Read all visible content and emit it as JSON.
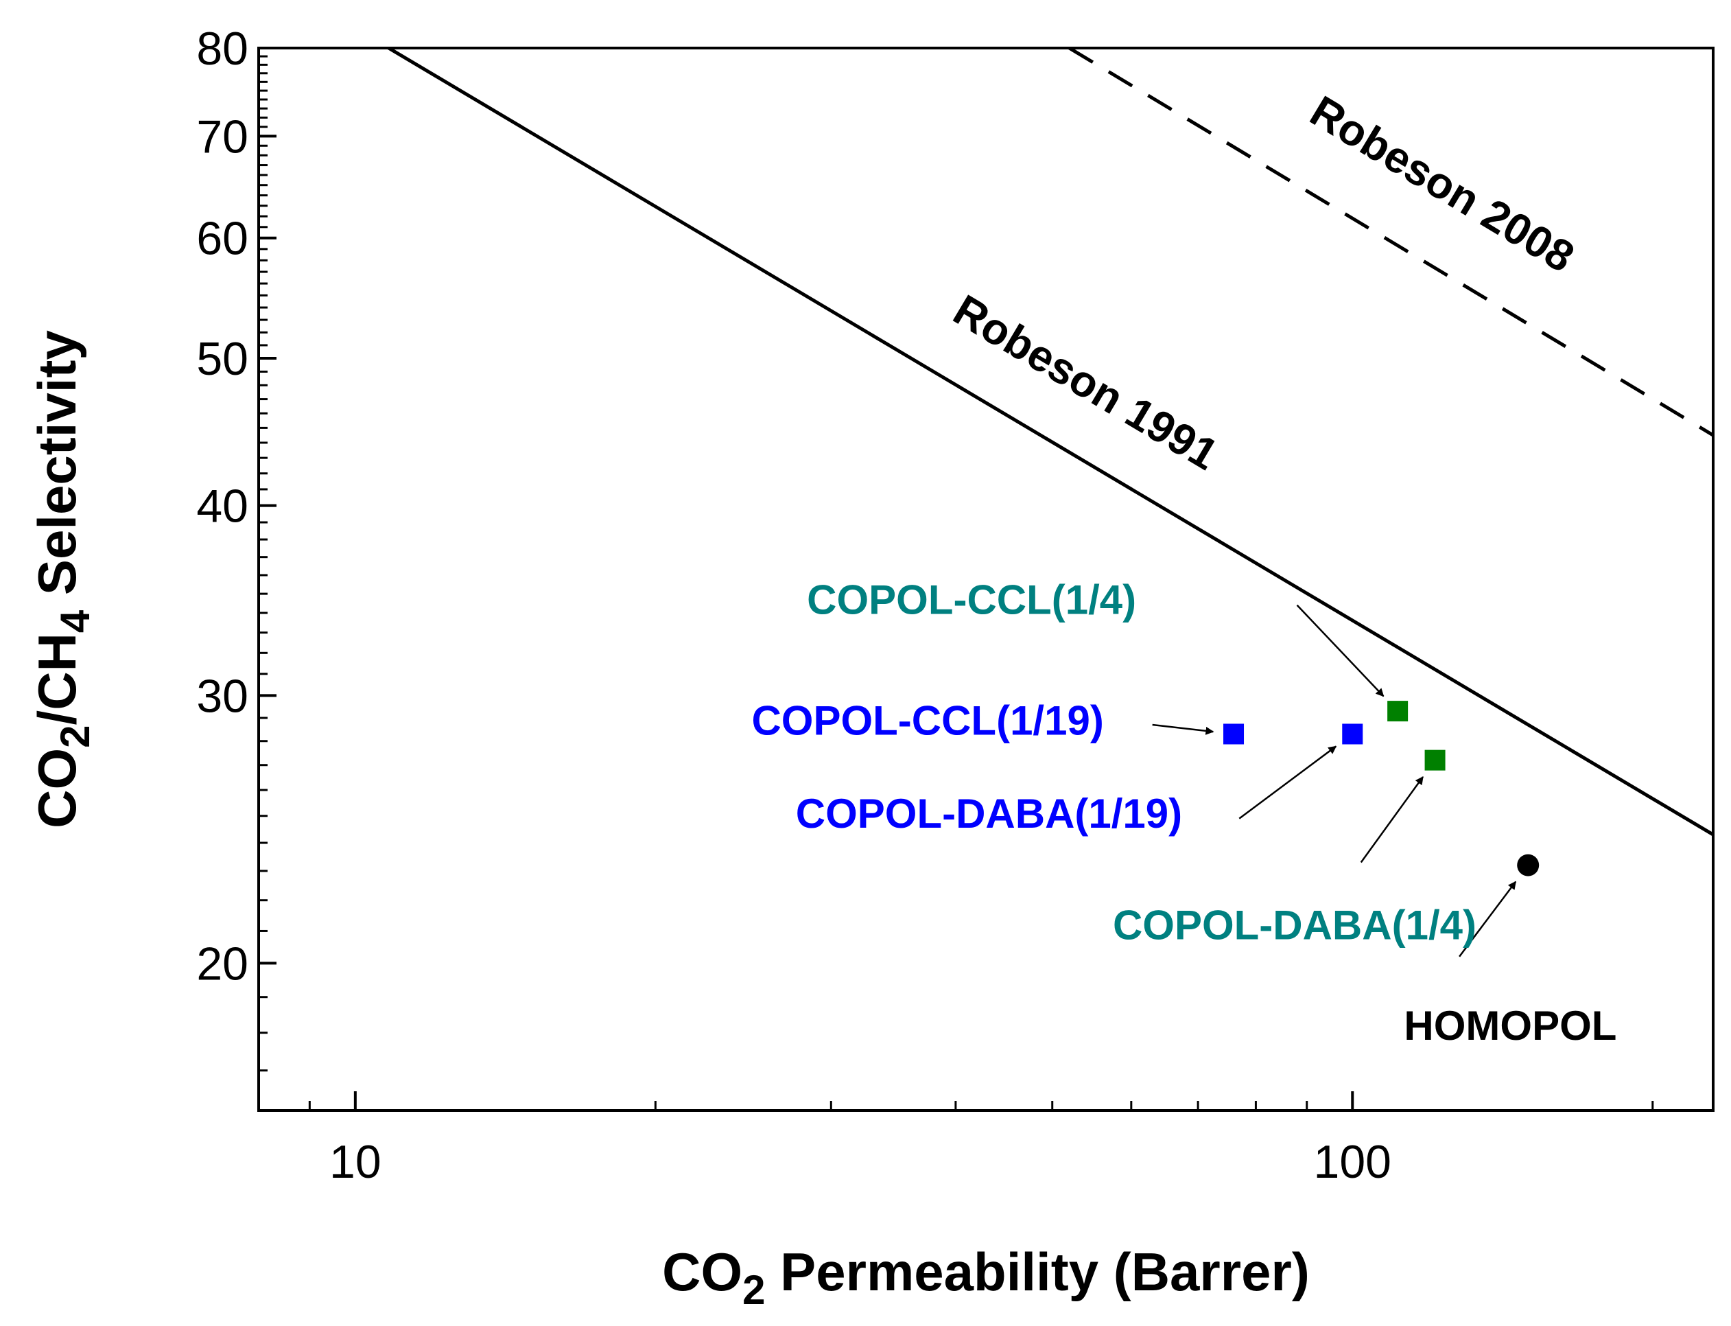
{
  "chart_data": {
    "type": "scatter",
    "title": "",
    "x_scale": "log",
    "y_scale": "log",
    "xlim": [
      8,
      230
    ],
    "ylim": [
      16,
      80
    ],
    "x_major_ticks": [
      10,
      100
    ],
    "x_tick_labels": [
      "10",
      "100"
    ],
    "y_major_ticks": [
      20,
      30,
      40,
      50,
      60,
      70,
      80
    ],
    "y_tick_labels": [
      "20",
      "30",
      "40",
      "50",
      "60",
      "70",
      "80"
    ],
    "xlabel": {
      "prefix": "CO",
      "sub": "2",
      "suffix": " Permeability (Barrer)"
    },
    "ylabel": {
      "p1": "CO",
      "s1": "2",
      "p2": "/CH",
      "s2": "4",
      "p3": " Selectivity"
    },
    "upper_bounds": [
      {
        "name": "Robeson 1991",
        "label": "Robeson 1991",
        "style": "solid",
        "points": [
          [
            10.8,
            80
          ],
          [
            230,
            24.3
          ]
        ]
      },
      {
        "name": "Robeson 2008",
        "label": "Robeson 2008",
        "style": "dashed",
        "points": [
          [
            52,
            80
          ],
          [
            230,
            44.5
          ]
        ]
      }
    ],
    "series": [
      {
        "name": "COPOL-CCL(1/19)",
        "label": "COPOL-CCL(1/19)",
        "marker": "square",
        "color": "#0000ff",
        "x": 76,
        "y": 28.3,
        "arrow_tail": [
          63,
          28.7
        ]
      },
      {
        "name": "COPOL-DABA(1/19)",
        "label": "COPOL-DABA(1/19)",
        "marker": "square",
        "color": "#0000ff",
        "x": 100,
        "y": 28.3,
        "arrow_tail": [
          77,
          24.9
        ]
      },
      {
        "name": "COPOL-CCL(1/4)",
        "label": "COPOL-CCL(1/4)",
        "marker": "square",
        "color": "#008000",
        "x": 111,
        "y": 29.3,
        "arrow_tail": [
          88,
          34.4
        ]
      },
      {
        "name": "COPOL-DABA(1/4)",
        "label": "COPOL-DABA(1/4)",
        "marker": "square",
        "color": "#008000",
        "x": 121,
        "y": 27.2,
        "arrow_tail": [
          102,
          23.3
        ]
      },
      {
        "name": "HOMOPOL",
        "label": "HOMOPOL",
        "marker": "circle",
        "color": "#000000",
        "x": 150,
        "y": 23.2,
        "arrow_tail": [
          128,
          20.2
        ]
      }
    ],
    "label_colors": {
      "blue": "#0000ff",
      "teal": "#008080",
      "black": "#000000"
    }
  }
}
